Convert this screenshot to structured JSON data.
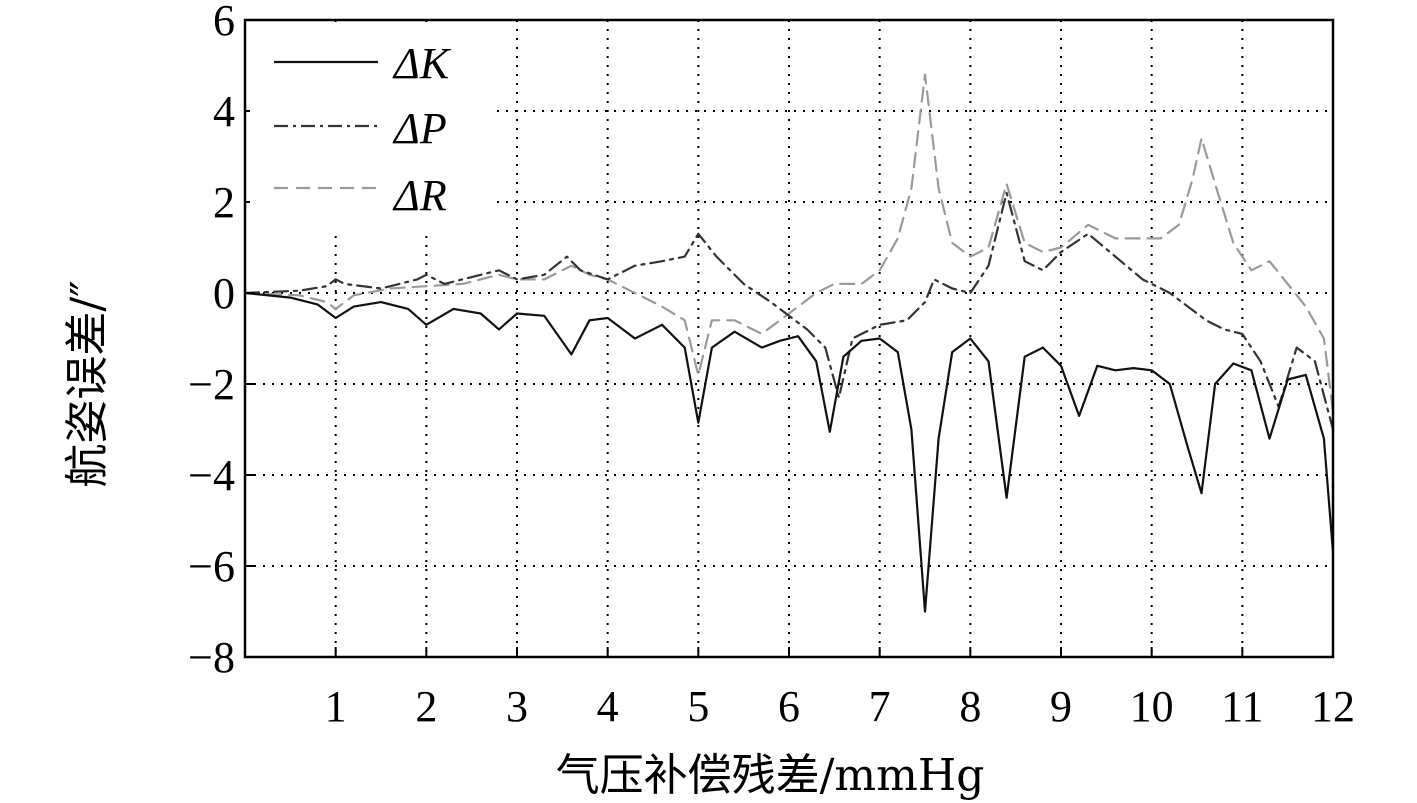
{
  "chart_data": {
    "type": "line",
    "xlabel": "气压补偿残差/mmHg",
    "ylabel": "航姿误差/″",
    "xlim": [
      0,
      12
    ],
    "ylim": [
      -8,
      6
    ],
    "xticks": [
      1,
      2,
      3,
      4,
      5,
      6,
      7,
      8,
      9,
      10,
      11,
      12
    ],
    "yticks": [
      6,
      4,
      2,
      0,
      -2,
      -4,
      -6,
      -8
    ],
    "xtick_labels": [
      "1",
      "2",
      "3",
      "4",
      "5",
      "6",
      "7",
      "8",
      "9",
      "10",
      "11",
      "12"
    ],
    "ytick_labels": [
      "6",
      "4",
      "2",
      "0",
      "−2",
      "−4",
      "−6",
      "−8"
    ],
    "grid": true,
    "legend_position": "top-left",
    "series": [
      {
        "name": "ΔK",
        "color": "#111111",
        "line_style": "solid",
        "x": [
          0,
          0.5,
          0.8,
          1.0,
          1.2,
          1.5,
          1.8,
          2.0,
          2.3,
          2.6,
          2.8,
          3.0,
          3.3,
          3.6,
          3.8,
          4.0,
          4.3,
          4.6,
          4.85,
          5.0,
          5.15,
          5.4,
          5.7,
          5.9,
          6.1,
          6.3,
          6.45,
          6.6,
          6.8,
          7.0,
          7.2,
          7.35,
          7.5,
          7.65,
          7.8,
          8.0,
          8.2,
          8.4,
          8.6,
          8.8,
          9.0,
          9.2,
          9.4,
          9.6,
          9.8,
          10.0,
          10.2,
          10.4,
          10.55,
          10.7,
          10.9,
          11.1,
          11.3,
          11.5,
          11.7,
          11.9,
          12.0
        ],
        "y": [
          0,
          -0.1,
          -0.25,
          -0.55,
          -0.3,
          -0.2,
          -0.35,
          -0.7,
          -0.35,
          -0.45,
          -0.8,
          -0.45,
          -0.5,
          -1.35,
          -0.6,
          -0.55,
          -1.0,
          -0.7,
          -1.2,
          -2.85,
          -1.2,
          -0.85,
          -1.2,
          -1.05,
          -0.95,
          -1.5,
          -3.05,
          -1.4,
          -1.05,
          -1.0,
          -1.3,
          -3.0,
          -7.0,
          -3.2,
          -1.3,
          -1.0,
          -1.5,
          -4.5,
          -1.4,
          -1.2,
          -1.6,
          -2.7,
          -1.6,
          -1.7,
          -1.65,
          -1.7,
          -2.0,
          -3.4,
          -4.4,
          -2.0,
          -1.55,
          -1.7,
          -3.2,
          -1.9,
          -1.8,
          -3.2,
          -5.7
        ]
      },
      {
        "name": "ΔP",
        "color": "#333333",
        "line_style": "dash-dot",
        "x": [
          0,
          0.6,
          0.9,
          1.0,
          1.1,
          1.5,
          1.9,
          2.0,
          2.2,
          2.6,
          2.8,
          3.0,
          3.3,
          3.55,
          3.7,
          4.0,
          4.3,
          4.6,
          4.85,
          5.0,
          5.2,
          5.5,
          5.8,
          6.0,
          6.2,
          6.4,
          6.55,
          6.7,
          7.0,
          7.3,
          7.5,
          7.6,
          7.8,
          8.0,
          8.2,
          8.4,
          8.6,
          8.8,
          9.0,
          9.3,
          9.6,
          9.9,
          10.2,
          10.4,
          10.6,
          10.8,
          11.0,
          11.2,
          11.4,
          11.6,
          11.8,
          12.0
        ],
        "y": [
          0,
          0.05,
          0.15,
          0.3,
          0.2,
          0.1,
          0.3,
          0.4,
          0.2,
          0.4,
          0.5,
          0.3,
          0.4,
          0.8,
          0.5,
          0.3,
          0.6,
          0.7,
          0.8,
          1.3,
          0.8,
          0.2,
          -0.2,
          -0.5,
          -0.8,
          -1.2,
          -2.3,
          -1.0,
          -0.7,
          -0.6,
          -0.2,
          0.3,
          0.1,
          0.0,
          0.6,
          2.2,
          0.7,
          0.5,
          0.9,
          1.3,
          0.8,
          0.3,
          0.0,
          -0.3,
          -0.6,
          -0.8,
          -0.9,
          -1.5,
          -2.5,
          -1.2,
          -1.5,
          -3.0
        ]
      },
      {
        "name": "ΔR",
        "color": "#9a9a9a",
        "line_style": "dashed",
        "x": [
          0,
          0.6,
          0.9,
          1.0,
          1.2,
          1.6,
          2.0,
          2.4,
          2.8,
          3.0,
          3.3,
          3.6,
          3.8,
          4.0,
          4.3,
          4.6,
          4.85,
          5.0,
          5.15,
          5.4,
          5.7,
          5.9,
          6.1,
          6.3,
          6.5,
          6.8,
          7.0,
          7.2,
          7.35,
          7.5,
          7.65,
          7.8,
          8.0,
          8.2,
          8.4,
          8.6,
          8.8,
          9.0,
          9.3,
          9.6,
          9.9,
          10.1,
          10.3,
          10.45,
          10.55,
          10.7,
          10.9,
          11.1,
          11.3,
          11.5,
          11.7,
          11.9,
          12.0
        ],
        "y": [
          0,
          -0.05,
          -0.2,
          -0.35,
          -0.05,
          0.1,
          0.15,
          0.2,
          0.4,
          0.3,
          0.3,
          0.6,
          0.4,
          0.3,
          0.0,
          -0.3,
          -0.6,
          -1.8,
          -0.6,
          -0.6,
          -0.9,
          -0.6,
          -0.3,
          0.0,
          0.2,
          0.2,
          0.5,
          1.2,
          2.3,
          4.8,
          2.3,
          1.1,
          0.8,
          1.0,
          2.4,
          1.1,
          0.9,
          1.0,
          1.5,
          1.2,
          1.2,
          1.2,
          1.5,
          2.5,
          3.4,
          2.4,
          1.1,
          0.5,
          0.7,
          0.2,
          -0.3,
          -1.0,
          -2.6
        ]
      }
    ]
  }
}
